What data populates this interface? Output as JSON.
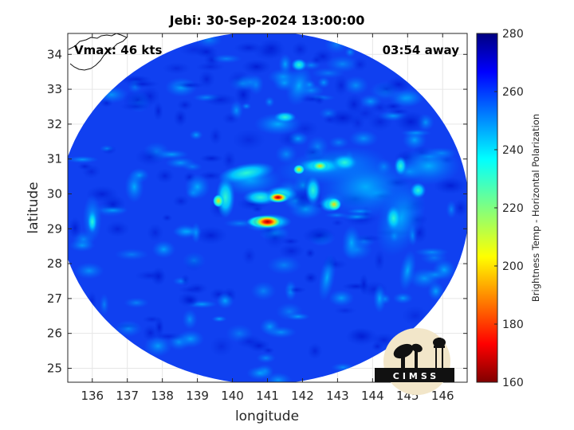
{
  "chart_data": {
    "type": "heatmap",
    "title": "Jebi: 30-Sep-2024 13:00:00",
    "xlabel": "longitude",
    "ylabel": "latitude",
    "xlim": [
      135.3,
      146.7
    ],
    "ylim": [
      24.6,
      34.6
    ],
    "xticks": [
      "136",
      "137",
      "138",
      "139",
      "140",
      "141",
      "142",
      "143",
      "144",
      "145",
      "146"
    ],
    "yticks": [
      "25",
      "26",
      "27",
      "28",
      "29",
      "30",
      "31",
      "32",
      "33",
      "34"
    ],
    "grid": true,
    "annotations": {
      "vmax": "Vmax: 46 kts",
      "away": "03:54 away"
    },
    "colorbar": {
      "label": "Brightness Temp - Horizontal Polarization",
      "min": 160,
      "max": 280,
      "ticks": [
        "160",
        "180",
        "200",
        "220",
        "240",
        "260",
        "280"
      ]
    },
    "swath": {
      "center": [
        140.9,
        29.6
      ],
      "radius_deg_lon": 5.85,
      "radius_deg_lat": 5.05,
      "background_value": 258
    },
    "storm_center": [
      140.9,
      29.3
    ],
    "features": [
      {
        "lon": 141.0,
        "lat": 29.2,
        "value": 172
      },
      {
        "lon": 141.3,
        "lat": 29.9,
        "value": 190
      },
      {
        "lon": 139.6,
        "lat": 29.8,
        "value": 200
      },
      {
        "lon": 142.5,
        "lat": 30.8,
        "value": 210
      },
      {
        "lon": 142.9,
        "lat": 29.7,
        "value": 205
      }
    ]
  },
  "logo": {
    "text": "CIMSS"
  }
}
